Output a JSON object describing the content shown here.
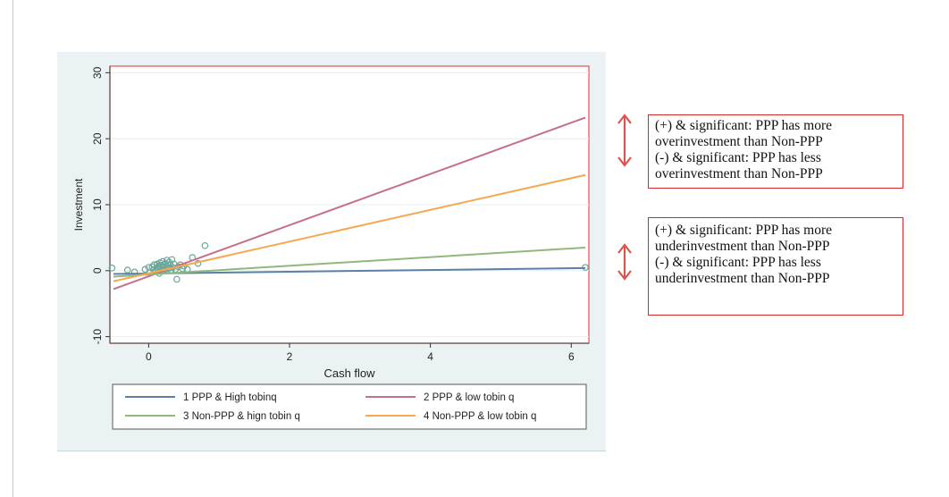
{
  "chart_data": {
    "type": "line",
    "title": "",
    "xlabel": "Cash flow",
    "ylabel": "Investment",
    "xlim": [
      -0.55,
      6.25
    ],
    "ylim": [
      -11,
      31
    ],
    "x_ticks": [
      0,
      2,
      4,
      6
    ],
    "y_ticks": [
      -10,
      0,
      10,
      20,
      30
    ],
    "grid": "horizontal",
    "legend_position": "bottom",
    "series": [
      {
        "name": "1 PPP & High tobinq",
        "color": "#5a80a8",
        "x": [
          -0.5,
          6.2
        ],
        "y": [
          -0.5,
          0.4
        ]
      },
      {
        "name": "2 PPP & low tobin q",
        "color": "#c5708a",
        "x": [
          -0.5,
          6.2
        ],
        "y": [
          -2.8,
          23.2
        ]
      },
      {
        "name": "3 Non-PPP & hign tobin q",
        "color": "#8fb97a",
        "x": [
          -0.5,
          6.2
        ],
        "y": [
          -0.9,
          3.5
        ]
      },
      {
        "name": "4 Non-PPP & low tobin q",
        "color": "#f5a84f",
        "x": [
          -0.5,
          6.2
        ],
        "y": [
          -1.6,
          14.5
        ]
      }
    ],
    "scatter": {
      "color": "#6aa79a",
      "points": [
        [
          -0.52,
          0.4
        ],
        [
          -0.3,
          0.1
        ],
        [
          -0.2,
          -0.2
        ],
        [
          -0.05,
          0.2
        ],
        [
          0.0,
          0.5
        ],
        [
          0.02,
          -0.3
        ],
        [
          0.05,
          0.6
        ],
        [
          0.07,
          0.1
        ],
        [
          0.08,
          0.9
        ],
        [
          0.1,
          -0.1
        ],
        [
          0.11,
          0.4
        ],
        [
          0.12,
          1.0
        ],
        [
          0.13,
          0.2
        ],
        [
          0.14,
          0.7
        ],
        [
          0.15,
          -0.4
        ],
        [
          0.16,
          1.2
        ],
        [
          0.17,
          0.3
        ],
        [
          0.18,
          0.8
        ],
        [
          0.19,
          0.0
        ],
        [
          0.2,
          1.4
        ],
        [
          0.21,
          0.5
        ],
        [
          0.22,
          0.9
        ],
        [
          0.23,
          0.2
        ],
        [
          0.24,
          1.1
        ],
        [
          0.25,
          0.6
        ],
        [
          0.26,
          1.6
        ],
        [
          0.27,
          0.3
        ],
        [
          0.28,
          0.8
        ],
        [
          0.29,
          1.3
        ],
        [
          0.3,
          0.4
        ],
        [
          0.31,
          0.9
        ],
        [
          0.32,
          0.1
        ],
        [
          0.33,
          1.7
        ],
        [
          0.34,
          0.5
        ],
        [
          0.36,
          1.0
        ],
        [
          0.38,
          0.2
        ],
        [
          0.4,
          -1.3
        ],
        [
          0.42,
          0.6
        ],
        [
          0.45,
          0.9
        ],
        [
          0.48,
          0.3
        ],
        [
          0.5,
          0.7
        ],
        [
          0.55,
          0.2
        ],
        [
          0.62,
          2.0
        ],
        [
          0.7,
          1.1
        ],
        [
          0.8,
          3.8
        ],
        [
          6.2,
          0.5
        ]
      ]
    }
  },
  "notes": {
    "top": [
      "(+) & significant: PPP has more",
      "overinvestment than Non-PPP",
      "(-) & significant: PPP has less",
      "overinvestment than Non-PPP"
    ],
    "bottom": [
      "(+) & significant: PPP has more",
      "underinvestment than Non-PPP",
      "(-) & significant: PPP has less",
      "underinvestment than Non-PPP"
    ]
  },
  "colors": {
    "accent_red": "#d32a2a",
    "arrow": "#d9534f"
  }
}
